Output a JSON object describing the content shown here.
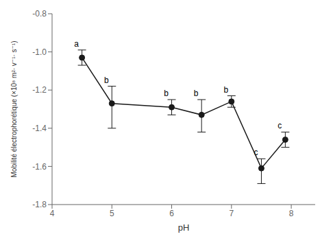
{
  "chart_data": {
    "type": "line",
    "x": [
      4.5,
      5.0,
      6.0,
      6.5,
      7.0,
      7.5,
      7.9
    ],
    "values": [
      -1.03,
      -1.27,
      -1.29,
      -1.33,
      -1.26,
      -1.61,
      -1.46
    ],
    "error_lower": [
      0.04,
      0.13,
      0.04,
      0.09,
      0.03,
      0.08,
      0.04
    ],
    "error_upper": [
      0.04,
      0.09,
      0.04,
      0.08,
      0.03,
      0.05,
      0.04
    ],
    "annotations": [
      "a",
      "b",
      "b",
      "b",
      "b",
      "c",
      "c"
    ],
    "xlabel": "pH",
    "ylabel": "Mobilité électrophorétique (×10⁸ m²· v⁻¹· s⁻¹)",
    "xlim": [
      4.0,
      8.4
    ],
    "ylim": [
      -1.8,
      -0.8
    ],
    "xticks": [
      4,
      5,
      6,
      7,
      8
    ],
    "yticks": [
      -1.8,
      -1.6,
      -1.4,
      -1.2,
      {
        "value": -1.0,
        "label": "-1.0"
      },
      -0.8
    ],
    "color": "#1a1a1a",
    "marker": "circle",
    "grid": false
  }
}
